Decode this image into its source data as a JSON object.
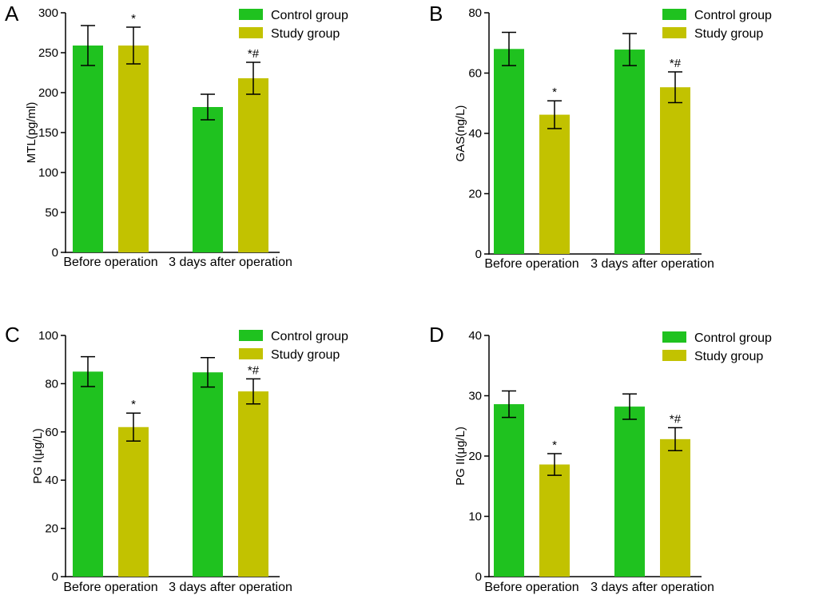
{
  "chart_data": [
    {
      "type": "bar",
      "panel": "A",
      "ylabel": "MTL(pg/ml)",
      "ylim": [
        0,
        300
      ],
      "yticks": [
        0,
        50,
        100,
        150,
        200,
        250,
        300
      ],
      "categories": [
        "Before operation",
        "3 days after operation"
      ],
      "series": [
        {
          "name": "Control group",
          "color": "#1FC21F",
          "values": [
            259,
            182
          ],
          "errors": [
            25,
            16
          ],
          "annotations": [
            "",
            ""
          ]
        },
        {
          "name": "Study group",
          "color": "#C2C200",
          "values": [
            259,
            218
          ],
          "errors": [
            23,
            20
          ],
          "annotations": [
            "*",
            "*#"
          ]
        }
      ]
    },
    {
      "type": "bar",
      "panel": "B",
      "ylabel": "GAS(ng/L)",
      "ylim": [
        0,
        80
      ],
      "yticks": [
        0,
        20,
        40,
        60,
        80
      ],
      "categories": [
        "Before operation",
        "3 days after operation"
      ],
      "series": [
        {
          "name": "Control group",
          "color": "#1FC21F",
          "values": [
            68,
            67.8
          ],
          "errors": [
            5.5,
            5.3
          ],
          "annotations": [
            "",
            ""
          ]
        },
        {
          "name": "Study group",
          "color": "#C2C200",
          "values": [
            46.2,
            55.3
          ],
          "errors": [
            4.6,
            5.1
          ],
          "annotations": [
            "*",
            "*#"
          ]
        }
      ]
    },
    {
      "type": "bar",
      "panel": "C",
      "ylabel": "PG I(μg/L)",
      "ylim": [
        0,
        100
      ],
      "yticks": [
        0,
        20,
        40,
        60,
        80,
        100
      ],
      "categories": [
        "Before operation",
        "3 days after operation"
      ],
      "series": [
        {
          "name": "Control group",
          "color": "#1FC21F",
          "values": [
            85,
            84.7
          ],
          "errors": [
            6.2,
            6.1
          ],
          "annotations": [
            "",
            ""
          ]
        },
        {
          "name": "Study group",
          "color": "#C2C200",
          "values": [
            62,
            76.8
          ],
          "errors": [
            5.8,
            5.2
          ],
          "annotations": [
            "*",
            "*#"
          ]
        }
      ]
    },
    {
      "type": "bar",
      "panel": "D",
      "ylabel": "PG II(μg/L)",
      "ylim": [
        0,
        40
      ],
      "yticks": [
        0,
        10,
        20,
        30,
        40
      ],
      "categories": [
        "Before operation",
        "3 days after operation"
      ],
      "series": [
        {
          "name": "Control group",
          "color": "#1FC21F",
          "values": [
            28.6,
            28.2
          ],
          "errors": [
            2.2,
            2.1
          ],
          "annotations": [
            "",
            ""
          ]
        },
        {
          "name": "Study group",
          "color": "#C2C200",
          "values": [
            18.6,
            22.8
          ],
          "errors": [
            1.8,
            1.9
          ],
          "annotations": [
            "*",
            "*#"
          ]
        }
      ]
    }
  ]
}
